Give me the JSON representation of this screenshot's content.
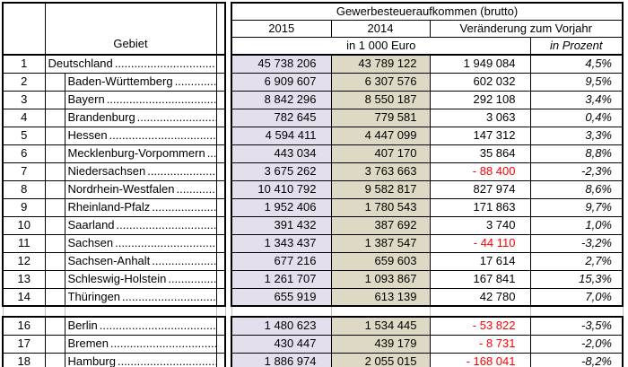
{
  "header": {
    "title": "Gewerbesteueraufkommen (brutto)",
    "year_current": "2015",
    "year_previous": "2014",
    "change_label": "Veränderung zum Vorjahr",
    "unit_absolute": "in 1 000 Euro",
    "unit_percent": "in Prozent",
    "area_label": "Gebiet"
  },
  "colors": {
    "col_2015_bg": "#e4dfec",
    "col_2014_bg": "#ddd9c4",
    "negative_text": "#ff0000",
    "border": "#000000",
    "gridline": "#bfbfbf"
  },
  "table": {
    "rows": [
      {
        "num": "1",
        "name": "Deutschland",
        "indent": false,
        "v2015": "45 738 206",
        "v2014": "43 789 122",
        "change_abs": "1 949 084",
        "change_pct": "4,5%"
      },
      {
        "num": "2",
        "name": "Baden-Württemberg",
        "indent": true,
        "v2015": "6 909 607",
        "v2014": "6 307 576",
        "change_abs": "602 032",
        "change_pct": "9,5%"
      },
      {
        "num": "3",
        "name": "Bayern",
        "indent": true,
        "v2015": "8 842 296",
        "v2014": "8 550 187",
        "change_abs": "292 108",
        "change_pct": "3,4%"
      },
      {
        "num": "4",
        "name": "Brandenburg",
        "indent": true,
        "v2015": "782 645",
        "v2014": "779 581",
        "change_abs": "3 063",
        "change_pct": "0,4%"
      },
      {
        "num": "5",
        "name": "Hessen",
        "indent": true,
        "v2015": "4 594 411",
        "v2014": "4 447 099",
        "change_abs": "147 312",
        "change_pct": "3,3%"
      },
      {
        "num": "6",
        "name": "Mecklenburg-Vorpommern",
        "indent": true,
        "v2015": "443 034",
        "v2014": "407 170",
        "change_abs": "35 864",
        "change_pct": "8,8%"
      },
      {
        "num": "7",
        "name": "Niedersachsen",
        "indent": true,
        "v2015": "3 675 262",
        "v2014": "3 763 663",
        "change_abs": "- 88 400",
        "change_pct": "-2,3%"
      },
      {
        "num": "8",
        "name": "Nordrhein-Westfalen",
        "indent": true,
        "v2015": "10 410 792",
        "v2014": "9 582 817",
        "change_abs": "827 974",
        "change_pct": "8,6%"
      },
      {
        "num": "9",
        "name": "Rheinland-Pfalz",
        "indent": true,
        "v2015": "1 952 406",
        "v2014": "1 780 543",
        "change_abs": "171 863",
        "change_pct": "9,7%"
      },
      {
        "num": "10",
        "name": "Saarland",
        "indent": true,
        "v2015": "391 432",
        "v2014": "387 692",
        "change_abs": "3 740",
        "change_pct": "1,0%"
      },
      {
        "num": "11",
        "name": "Sachsen",
        "indent": true,
        "v2015": "1 343 437",
        "v2014": "1 387 547",
        "change_abs": "- 44 110",
        "change_pct": "-3,2%"
      },
      {
        "num": "12",
        "name": "Sachsen-Anhalt",
        "indent": true,
        "v2015": "677 216",
        "v2014": "659 603",
        "change_abs": "17 614",
        "change_pct": "2,7%"
      },
      {
        "num": "13",
        "name": "Schleswig-Holstein",
        "indent": true,
        "v2015": "1 261 707",
        "v2014": "1 093 867",
        "change_abs": "167 841",
        "change_pct": "15,3%"
      },
      {
        "num": "14",
        "name": "Thüringen",
        "indent": true,
        "v2015": "655 919",
        "v2014": "613 139",
        "change_abs": "42 780",
        "change_pct": "7,0%"
      },
      {
        "blank": true
      },
      {
        "num": "16",
        "name": "Berlin",
        "indent": true,
        "v2015": "1 480 623",
        "v2014": "1 534 445",
        "change_abs": "- 53 822",
        "change_pct": "-3,5%"
      },
      {
        "num": "17",
        "name": "Bremen",
        "indent": true,
        "v2015": "430 447",
        "v2014": "439 179",
        "change_abs": "- 8 731",
        "change_pct": "-2,0%"
      },
      {
        "num": "18",
        "name": "Hamburg",
        "indent": true,
        "v2015": "1 886 974",
        "v2014": "2 055 015",
        "change_abs": "- 168 041",
        "change_pct": "-8,2%"
      }
    ]
  }
}
